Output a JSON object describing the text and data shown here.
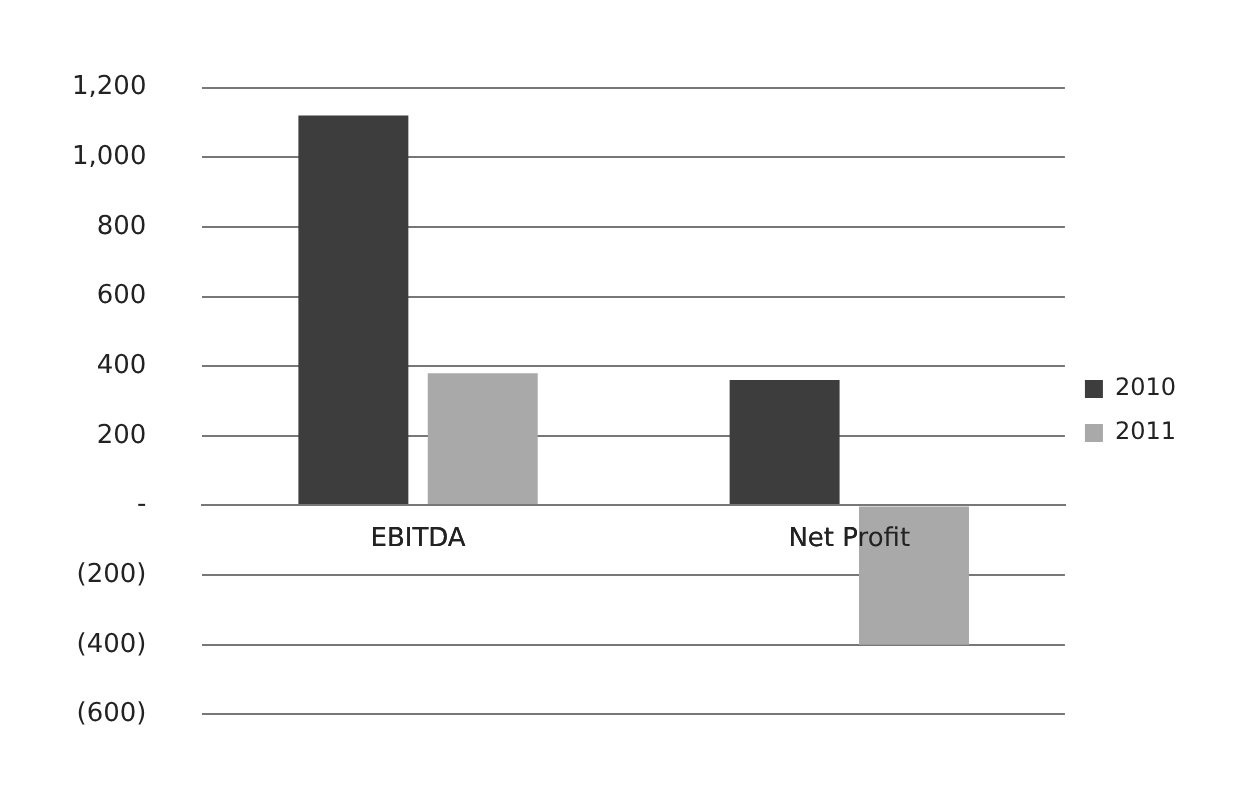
{
  "chart_data": {
    "type": "bar",
    "categories": [
      "EBITDA",
      "Net Profit"
    ],
    "series": [
      {
        "name": "2010",
        "color": "#3d3d3d",
        "values": [
          1120,
          360
        ]
      },
      {
        "name": "2011",
        "color": "#a9a9a9",
        "values": [
          380,
          -400
        ]
      }
    ],
    "ylim": [
      -600,
      1200
    ],
    "yticks": [
      {
        "value": -600,
        "label": "(600)"
      },
      {
        "value": -400,
        "label": "(400)"
      },
      {
        "value": -200,
        "label": "(200)"
      },
      {
        "value": 0,
        "label": "-"
      },
      {
        "value": 200,
        "label": "200"
      },
      {
        "value": 400,
        "label": "400"
      },
      {
        "value": 600,
        "label": "600"
      },
      {
        "value": 800,
        "label": "800"
      },
      {
        "value": 1000,
        "label": "1,000"
      },
      {
        "value": 1200,
        "label": "1,200"
      }
    ],
    "grid": "y",
    "legend": "right"
  }
}
